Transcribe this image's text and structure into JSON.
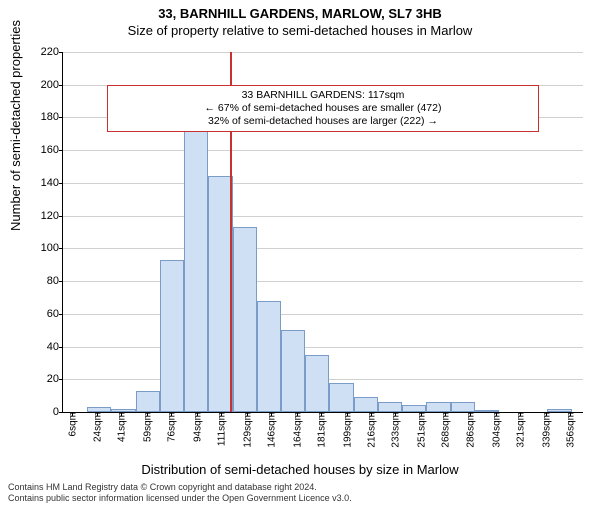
{
  "title_main": "33, BARNHILL GARDENS, MARLOW, SL7 3HB",
  "title_sub": "Size of property relative to semi-detached houses in Marlow",
  "y_label": "Number of semi-detached properties",
  "x_label": "Distribution of semi-detached houses by size in Marlow",
  "chart": {
    "type": "histogram",
    "xlim": [
      0,
      365
    ],
    "ylim": [
      0,
      220
    ],
    "ytick_step": 20,
    "x_ticks": [
      6,
      24,
      41,
      59,
      76,
      94,
      111,
      129,
      146,
      164,
      181,
      199,
      216,
      233,
      251,
      268,
      286,
      304,
      321,
      339,
      356
    ],
    "x_tick_suffix": "sqm",
    "bar_width_sqm": 17,
    "bars": [
      {
        "x": 0,
        "h": 0
      },
      {
        "x": 17,
        "h": 3
      },
      {
        "x": 34,
        "h": 2
      },
      {
        "x": 51,
        "h": 13
      },
      {
        "x": 68,
        "h": 93
      },
      {
        "x": 85,
        "h": 182
      },
      {
        "x": 102,
        "h": 144
      },
      {
        "x": 119,
        "h": 113
      },
      {
        "x": 136,
        "h": 68
      },
      {
        "x": 153,
        "h": 50
      },
      {
        "x": 170,
        "h": 35
      },
      {
        "x": 187,
        "h": 18
      },
      {
        "x": 204,
        "h": 9
      },
      {
        "x": 221,
        "h": 6
      },
      {
        "x": 238,
        "h": 4
      },
      {
        "x": 255,
        "h": 6
      },
      {
        "x": 272,
        "h": 6
      },
      {
        "x": 289,
        "h": 1
      },
      {
        "x": 306,
        "h": 0
      },
      {
        "x": 323,
        "h": 0
      },
      {
        "x": 340,
        "h": 2
      }
    ],
    "bar_fill": "#cfdff4",
    "bar_border": "#7a9cc6",
    "grid_color": "#d0d0d0",
    "background_color": "#ffffff",
    "ref_line_x": 117,
    "ref_line_color": "#c93030"
  },
  "annotation": {
    "line1": "33 BARNHILL GARDENS: 117sqm",
    "line2": "← 67% of semi-detached houses are smaller (472)",
    "line3": "32% of semi-detached houses are larger (222) →",
    "border_color": "#c93030",
    "top_y": 200
  },
  "footer1": "Contains HM Land Registry data © Crown copyright and database right 2024.",
  "footer2": "Contains public sector information licensed under the Open Government Licence v3.0.",
  "fonts": {
    "title_size": 13,
    "label_size": 13,
    "tick_size": 11,
    "anno_size": 10.5,
    "footer_size": 9
  }
}
